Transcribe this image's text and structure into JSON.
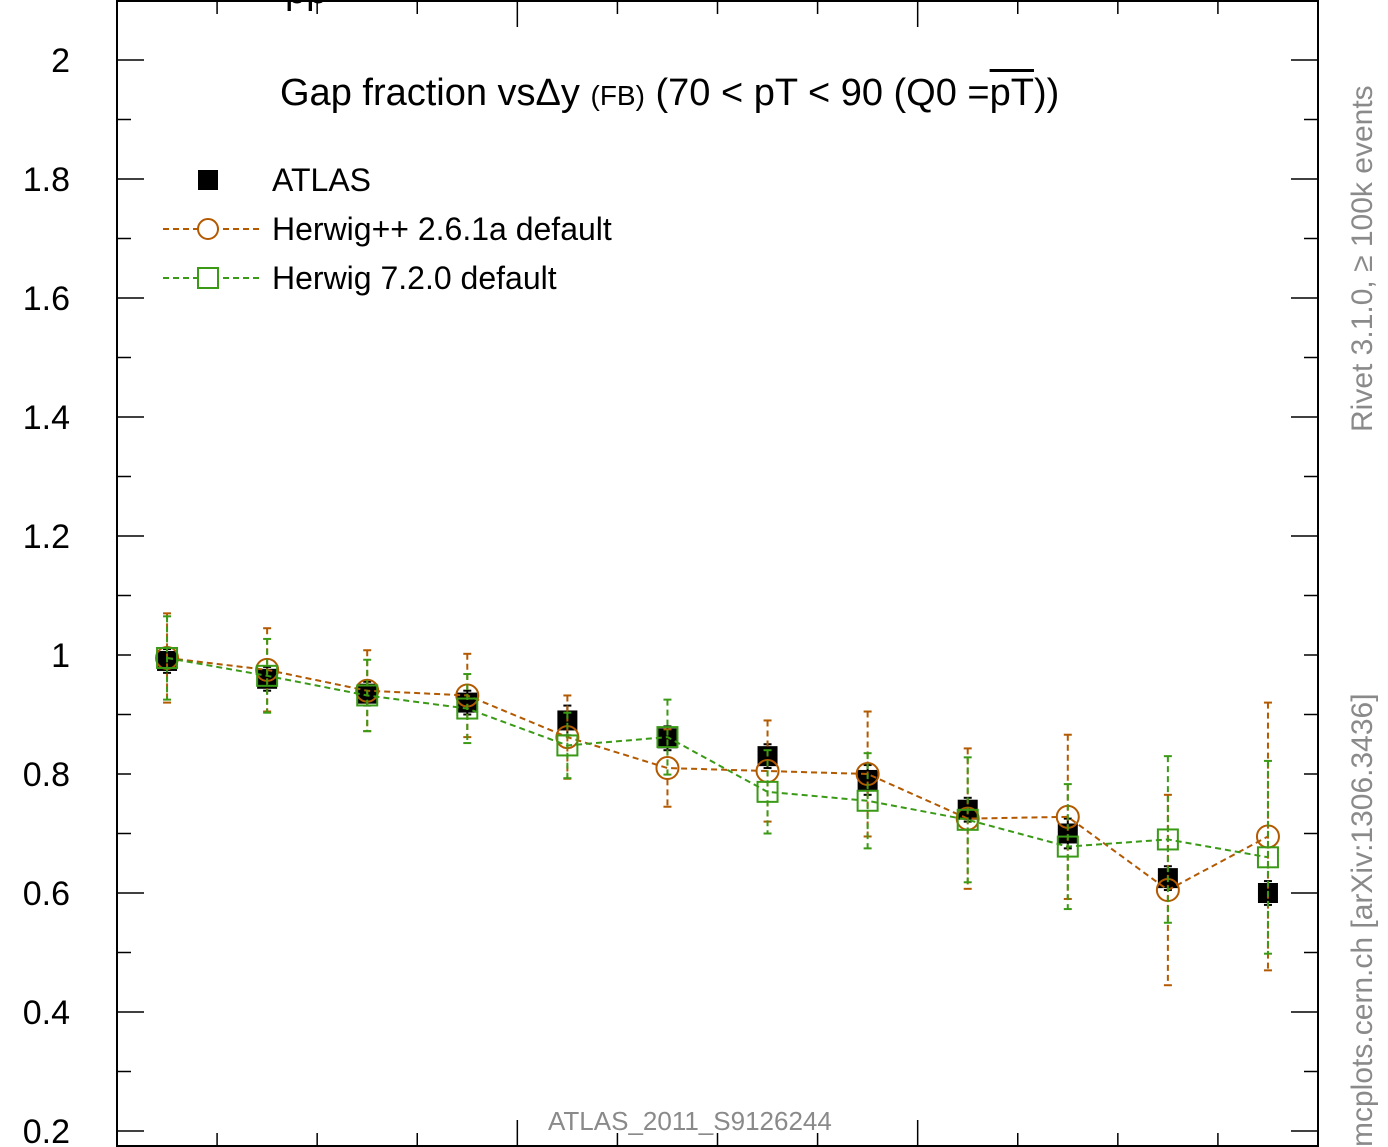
{
  "chart_data": {
    "type": "scatter",
    "title": "Gap fraction vsΔy (FB) (70 < pT <  90 (Q0 =pT))",
    "title_parts": {
      "main": "Gap fraction vsΔy",
      "small": "(FB)",
      "rest1": "(70 < pT <  90 (Q0 =",
      "bar": "pT",
      "rest2": "))"
    },
    "xlabel": "",
    "ylabel": "",
    "ylim": [
      0.2,
      2.05
    ],
    "xlim": [
      0,
      12
    ],
    "y_ticks": [
      "0.2",
      "0.4",
      "0.6",
      "0.8",
      "1",
      "1.2",
      "1.4",
      "1.6",
      "1.8",
      "2"
    ],
    "grid": false,
    "legend_position": "top-left",
    "series": [
      {
        "name": "ATLAS",
        "color": "#000000",
        "marker": "filled-square",
        "x": [
          0.5,
          1.5,
          2.5,
          3.5,
          4.5,
          5.5,
          6.5,
          7.5,
          8.5,
          9.5,
          10.5,
          11.5
        ],
        "y": [
          0.99,
          0.96,
          0.935,
          0.92,
          0.89,
          0.86,
          0.83,
          0.79,
          0.74,
          0.7,
          0.625,
          0.6
        ],
        "err": [
          0.02,
          0.02,
          0.02,
          0.02,
          0.025,
          0.02,
          0.02,
          0.025,
          0.02,
          0.025,
          0.02,
          0.02
        ]
      },
      {
        "name": "Herwig++ 2.6.1a default",
        "color": "#b35900",
        "marker": "open-circle",
        "x": [
          0.5,
          1.5,
          2.5,
          3.5,
          4.5,
          5.5,
          6.5,
          7.5,
          8.5,
          9.5,
          10.5,
          11.5
        ],
        "y": [
          0.995,
          0.975,
          0.94,
          0.932,
          0.862,
          0.81,
          0.805,
          0.8,
          0.725,
          0.728,
          0.605,
          0.695
        ],
        "err": [
          0.075,
          0.07,
          0.068,
          0.07,
          0.07,
          0.065,
          0.085,
          0.105,
          0.118,
          0.138,
          0.16,
          0.225
        ]
      },
      {
        "name": "Herwig 7.2.0 default",
        "color": "#3a9a16",
        "marker": "open-square",
        "x": [
          0.5,
          1.5,
          2.5,
          3.5,
          4.5,
          5.5,
          6.5,
          7.5,
          8.5,
          9.5,
          10.5,
          11.5
        ],
        "y": [
          0.995,
          0.965,
          0.932,
          0.91,
          0.848,
          0.862,
          0.77,
          0.755,
          0.723,
          0.678,
          0.69,
          0.66
        ],
        "err": [
          0.07,
          0.062,
          0.06,
          0.058,
          0.055,
          0.063,
          0.07,
          0.08,
          0.105,
          0.105,
          0.14,
          0.162
        ]
      }
    ],
    "annotation": "ATLAS_2011_S9126244"
  },
  "side_labels": {
    "top_right": "Rivet 3.1.0, ≥ 100k events",
    "bottom_right": "mcplots.cern.ch [arXiv:1306.3436]"
  },
  "colors": {
    "frame": "#000000",
    "side_text": "#8a8a8a",
    "herwigpp": "#b35900",
    "herwig7": "#3a9a16"
  }
}
